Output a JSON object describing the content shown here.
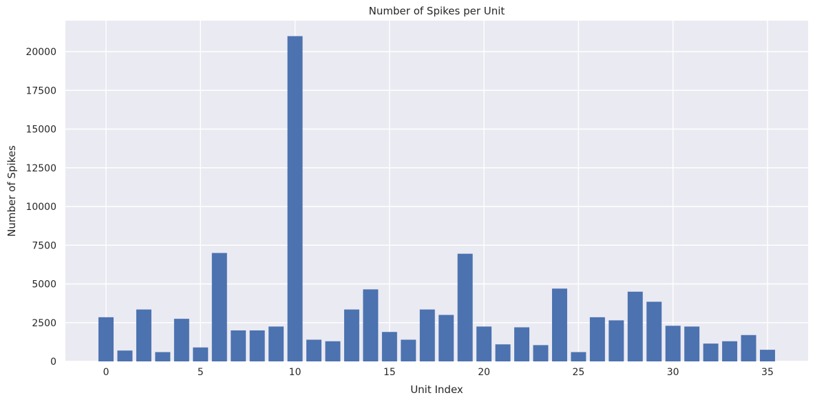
{
  "chart_data": {
    "type": "bar",
    "title": "Number of Spikes per Unit",
    "xlabel": "Unit Index",
    "ylabel": "Number of Spikes",
    "x": [
      0,
      1,
      2,
      3,
      4,
      5,
      6,
      7,
      8,
      9,
      10,
      11,
      12,
      13,
      14,
      15,
      16,
      17,
      18,
      19,
      20,
      21,
      22,
      23,
      24,
      25,
      26,
      27,
      28,
      29,
      30,
      31,
      32,
      33,
      34,
      35
    ],
    "values": [
      2850,
      700,
      3350,
      600,
      2750,
      900,
      7000,
      2000,
      2000,
      2250,
      21000,
      1400,
      1300,
      3350,
      4650,
      1900,
      1400,
      3350,
      3000,
      6950,
      2250,
      1100,
      2200,
      1050,
      4700,
      600,
      2850,
      2650,
      4500,
      3850,
      2300,
      2250,
      1150,
      1300,
      1700,
      750
    ],
    "xlim": [
      -2.15,
      37.15
    ],
    "ylim": [
      0,
      22000
    ],
    "x_ticks": [
      0,
      5,
      10,
      15,
      20,
      25,
      30,
      35
    ],
    "y_ticks": [
      0,
      2500,
      5000,
      7500,
      10000,
      12500,
      15000,
      17500,
      20000
    ],
    "grid": true,
    "colors": {
      "bar": "#4c72b0",
      "background": "#eaeaf2",
      "grid": "#ffffff",
      "text": "#262626"
    }
  }
}
